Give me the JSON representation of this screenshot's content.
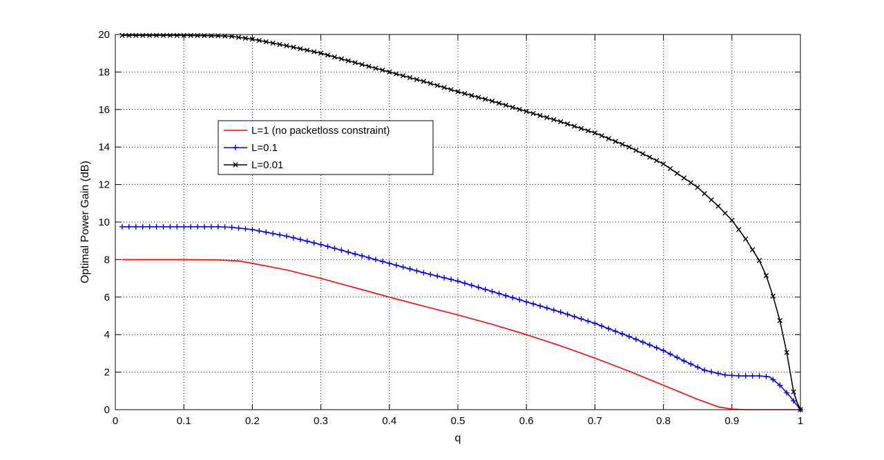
{
  "chart_data": {
    "type": "line",
    "title": "",
    "xlabel": "q",
    "ylabel": "Optimal Power Gain (dB)",
    "xlim": [
      0,
      1
    ],
    "ylim": [
      0,
      20
    ],
    "xticks": [
      "0",
      "0.1",
      "0.2",
      "0.3",
      "0.4",
      "0.5",
      "0.6",
      "0.7",
      "0.8",
      "0.9",
      "1"
    ],
    "yticks": [
      "0",
      "2",
      "4",
      "6",
      "8",
      "10",
      "12",
      "14",
      "16",
      "18",
      "20"
    ],
    "grid": true,
    "legend_position": "upper-left-center",
    "series": [
      {
        "name": "L=1 (no packetloss constraint)",
        "color": "#ff0000",
        "marker": "none",
        "x": [
          0.01,
          0.05,
          0.1,
          0.15,
          0.18,
          0.2,
          0.25,
          0.3,
          0.35,
          0.4,
          0.45,
          0.5,
          0.55,
          0.6,
          0.65,
          0.7,
          0.75,
          0.8,
          0.85,
          0.88,
          0.9,
          0.92,
          0.95,
          0.98,
          1.0
        ],
        "y": [
          8.0,
          8.0,
          8.0,
          7.98,
          7.93,
          7.8,
          7.45,
          7.0,
          6.5,
          6.0,
          5.52,
          5.05,
          4.55,
          4.0,
          3.4,
          2.75,
          2.05,
          1.3,
          0.55,
          0.15,
          0.03,
          0.0,
          0.0,
          0.0,
          0.0
        ]
      },
      {
        "name": "L=0.1",
        "color": "#0000ff",
        "marker": "+",
        "x": [
          0.01,
          0.05,
          0.1,
          0.15,
          0.17,
          0.2,
          0.25,
          0.3,
          0.35,
          0.4,
          0.45,
          0.5,
          0.55,
          0.6,
          0.65,
          0.7,
          0.75,
          0.8,
          0.83,
          0.86,
          0.89,
          0.91,
          0.94,
          0.955,
          0.97,
          0.985,
          1.0
        ],
        "y": [
          9.75,
          9.75,
          9.75,
          9.75,
          9.72,
          9.6,
          9.25,
          8.8,
          8.3,
          7.8,
          7.3,
          6.85,
          6.3,
          5.75,
          5.2,
          4.6,
          3.9,
          3.15,
          2.6,
          2.1,
          1.85,
          1.8,
          1.8,
          1.75,
          1.3,
          0.7,
          0.0
        ]
      },
      {
        "name": "L=0.01",
        "color": "#000000",
        "marker": "x",
        "x": [
          0.01,
          0.05,
          0.1,
          0.15,
          0.17,
          0.2,
          0.25,
          0.3,
          0.35,
          0.4,
          0.45,
          0.5,
          0.55,
          0.6,
          0.65,
          0.7,
          0.75,
          0.8,
          0.85,
          0.88,
          0.9,
          0.92,
          0.94,
          0.95,
          0.96,
          0.97,
          0.98,
          0.985,
          0.99,
          0.995,
          1.0
        ],
        "y": [
          19.95,
          19.95,
          19.95,
          19.93,
          19.9,
          19.75,
          19.4,
          19.0,
          18.5,
          18.0,
          17.5,
          16.95,
          16.45,
          15.9,
          15.35,
          14.75,
          14.0,
          13.1,
          11.85,
          10.85,
          10.1,
          9.1,
          7.95,
          7.15,
          6.05,
          4.75,
          3.05,
          2.0,
          0.95,
          0.4,
          0.0
        ]
      }
    ]
  }
}
